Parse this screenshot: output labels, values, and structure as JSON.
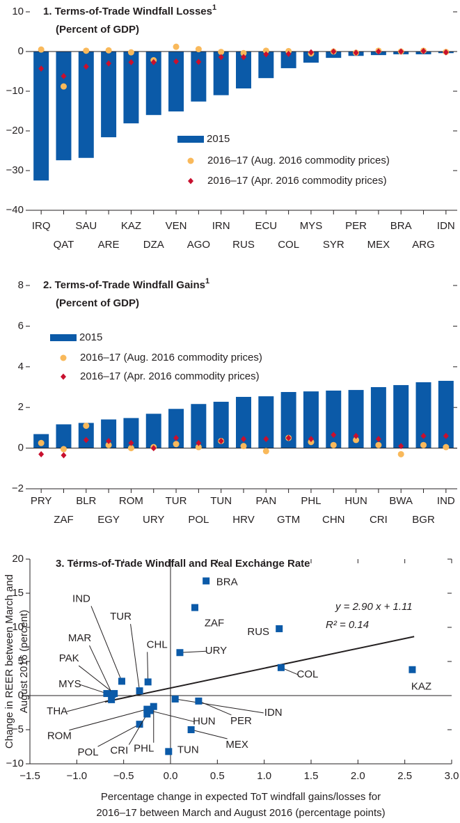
{
  "chart_data": [
    {
      "type": "bar",
      "title": "1. Terms-of-Trade Windfall Losses",
      "title_note": "1",
      "subtitle": "(Percent of GDP)",
      "categories": [
        "IRQ",
        "QAT",
        "SAU",
        "ARE",
        "KAZ",
        "DZA",
        "VEN",
        "AGO",
        "IRN",
        "RUS",
        "ECU",
        "COL",
        "MYS",
        "SYR",
        "PER",
        "MEX",
        "BRA",
        "ARG",
        "IDN"
      ],
      "series": [
        {
          "name": "2015",
          "marker": "bar",
          "color": "#0b5aa8",
          "values": [
            -32.5,
            -27.4,
            -26.8,
            -21.6,
            -18.1,
            -16,
            -15.1,
            -12.6,
            -11,
            -9.3,
            -6.7,
            -4.2,
            -2.8,
            -1.6,
            -1.1,
            -0.9,
            -0.7,
            -0.7,
            -0.4
          ]
        },
        {
          "name": "2016–17 (Aug. 2016 commodity prices)",
          "marker": "circle",
          "color": "#f9b95b",
          "values": [
            0.5,
            -8.8,
            0.2,
            0.3,
            -0.2,
            -2.2,
            1.2,
            0.6,
            -0.1,
            -0.4,
            0.2,
            0.1,
            -0.5,
            0,
            -0.3,
            0.2,
            0,
            0.2,
            -0.1
          ]
        },
        {
          "name": "2016–17 (Apr. 2016 commodity prices)",
          "marker": "diamond",
          "color": "#c8102e",
          "values": [
            -4.3,
            -6.2,
            -3.8,
            -3.0,
            -2.7,
            -2.7,
            -2.5,
            -2.6,
            -1.4,
            -1.4,
            -0.7,
            -0.6,
            -0.2,
            0,
            -0.3,
            0,
            0,
            0.1,
            -0.2
          ]
        }
      ],
      "ylim": [
        -40,
        10
      ],
      "yticks": [
        {
          "value": -40,
          "label": "−40"
        },
        {
          "value": -30,
          "label": "−30"
        },
        {
          "value": -20,
          "label": "−20"
        },
        {
          "value": -10,
          "label": "−10"
        },
        0,
        10
      ]
    },
    {
      "type": "bar",
      "title": "2. Terms-of-Trade Windfall Gains",
      "title_note": "1",
      "subtitle": "(Percent of GDP)",
      "categories": [
        "PRY",
        "ZAF",
        "BLR",
        "EGY",
        "ROM",
        "URY",
        "TUR",
        "POL",
        "TUN",
        "HRV",
        "PAN",
        "GTM",
        "PHL",
        "CHN",
        "HUN",
        "CRI",
        "BWA",
        "BGR",
        "IND"
      ],
      "series": [
        {
          "name": "2015",
          "marker": "bar",
          "color": "#0b5aa8",
          "values": [
            0.69,
            1.17,
            1.24,
            1.41,
            1.48,
            1.69,
            1.93,
            2.17,
            2.28,
            2.52,
            2.55,
            2.76,
            2.79,
            2.83,
            2.86,
            3.0,
            3.1,
            3.24,
            3.31
          ]
        },
        {
          "name": "2016–17 (Aug. 2016 commodity prices)",
          "marker": "circle",
          "color": "#f9b95b",
          "values": [
            0.25,
            -0.05,
            1.1,
            0.15,
            0,
            0.05,
            0.2,
            0.05,
            0.35,
            0.1,
            -0.15,
            0.5,
            0.3,
            0.15,
            0.4,
            0.15,
            -0.3,
            0.15,
            0.05
          ]
        },
        {
          "name": "2016–17 (Apr. 2016 commodity prices)",
          "marker": "diamond",
          "color": "#c8102e",
          "values": [
            -0.3,
            -0.35,
            0.4,
            0.35,
            0.25,
            0,
            0.5,
            0.25,
            0.35,
            0.45,
            0.45,
            0.5,
            0.45,
            0.65,
            0.6,
            0.45,
            0.1,
            0.6,
            0.6
          ]
        }
      ],
      "ylim": [
        -2,
        8
      ],
      "yticks": [
        {
          "value": -2,
          "label": "−2"
        },
        0,
        2,
        4,
        6,
        8
      ]
    },
    {
      "type": "scatter",
      "title": "3. Terms-of-Trade Windfall and Real Exchange Rate",
      "y_label": [
        "Change in REER between March and",
        "August 2016 (percent)"
      ],
      "x_label": [
        "Percentage change in expected ToT windfall gains/losses for",
        "2016–17 between March and August 2016 (percentage points)"
      ],
      "labels": [
        "BRA",
        "ZAF",
        "RUS",
        "URY",
        "COL",
        "KAZ",
        "IND",
        "TUR",
        "MAR",
        "PAK",
        "MYS",
        "CHL",
        "THA",
        "ROM",
        "POL",
        "CRI",
        "PHL",
        "HUN",
        "IDN",
        "PER",
        "MEX",
        "TUN"
      ],
      "x": [
        0.38,
        0.26,
        1.16,
        0.1,
        1.18,
        2.58,
        -0.52,
        -0.33,
        -0.62,
        -0.6,
        -0.68,
        -0.24,
        -0.63,
        -0.25,
        -0.33,
        -0.25,
        -0.18,
        -0.22,
        0.05,
        0.3,
        0.22,
        -0.02
      ],
      "values": [
        16.8,
        12.9,
        9.8,
        6.3,
        4.1,
        3.8,
        2.1,
        0.7,
        0.2,
        0.3,
        0.3,
        2.0,
        -0.6,
        -2.0,
        -4.2,
        -2.7,
        -1.6,
        -2.2,
        -0.5,
        -0.8,
        -5.0,
        -8.2
      ],
      "color": "#0b5aa8",
      "fit": {
        "slope": 2.9,
        "intercept": 1.11,
        "x": [
          -0.7,
          2.6
        ]
      },
      "annotations": [
        "y = 2.90 x + 1.11",
        "R² = 0.14"
      ],
      "xlim": [
        -1.5,
        3
      ],
      "xticks": [
        {
          "value": -1.5,
          "label": "−1.5"
        },
        {
          "value": -1,
          "label": "−1.0"
        },
        {
          "value": -0.5,
          "label": "−0.5"
        },
        {
          "value": 0,
          "label": "0.0"
        },
        0.5,
        {
          "value": 1,
          "label": "1.0"
        },
        1.5,
        {
          "value": 2,
          "label": "2.0"
        },
        2.5,
        {
          "value": 3,
          "label": "3.0"
        }
      ],
      "ylim": [
        -10,
        20
      ],
      "yticks": [
        {
          "value": -10,
          "label": "−10"
        },
        {
          "value": -5,
          "label": "−5"
        },
        0,
        5,
        10,
        15,
        20
      ]
    }
  ]
}
